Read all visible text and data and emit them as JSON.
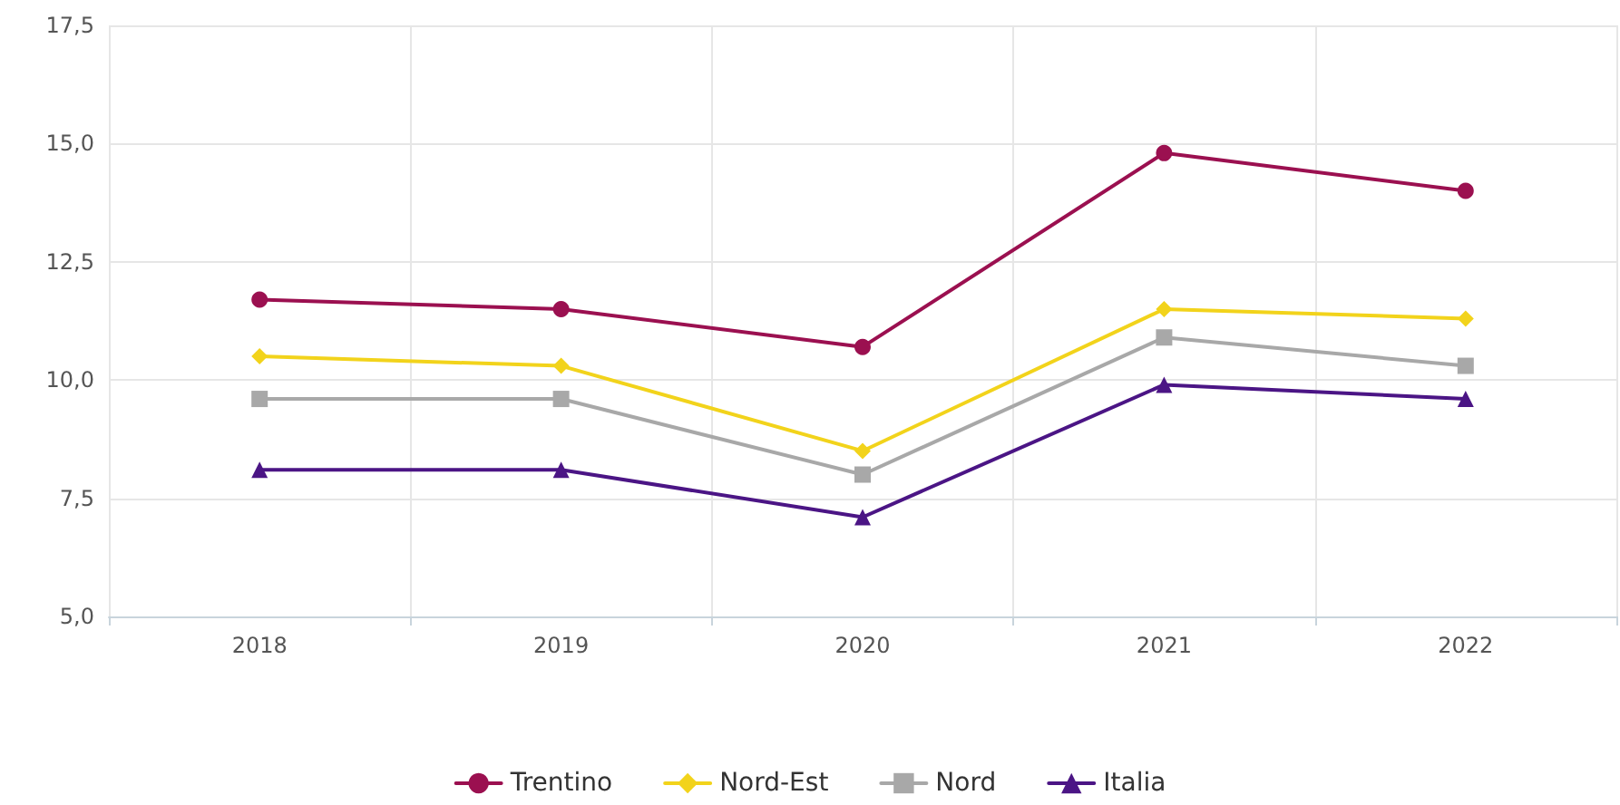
{
  "chart_data": {
    "type": "line",
    "categories": [
      "2018",
      "2019",
      "2020",
      "2021",
      "2022"
    ],
    "series": [
      {
        "name": "Trentino",
        "color": "#9b1050",
        "marker": "circle",
        "values": [
          11.7,
          11.5,
          10.7,
          14.8,
          14.0
        ]
      },
      {
        "name": "Nord-Est",
        "color": "#f2d31b",
        "marker": "diamond",
        "values": [
          10.5,
          10.3,
          8.5,
          11.5,
          11.3
        ]
      },
      {
        "name": "Nord",
        "color": "#a8a8a8",
        "marker": "square",
        "values": [
          9.6,
          9.6,
          8.0,
          10.9,
          10.3
        ]
      },
      {
        "name": "Italia",
        "color": "#4b1585",
        "marker": "triangle",
        "values": [
          8.1,
          8.1,
          7.1,
          9.9,
          9.6
        ]
      }
    ],
    "ylim": [
      5,
      17.5
    ],
    "yticks": [
      {
        "value": 5,
        "label": "5,0"
      },
      {
        "value": 7.5,
        "label": "7,5"
      },
      {
        "value": 10,
        "label": "10,0"
      },
      {
        "value": 12.5,
        "label": "12,5"
      },
      {
        "value": 15,
        "label": "15,0"
      },
      {
        "value": 17.5,
        "label": "17,5"
      }
    ],
    "grid": true,
    "legend": "bottom",
    "line_style": "solid"
  }
}
